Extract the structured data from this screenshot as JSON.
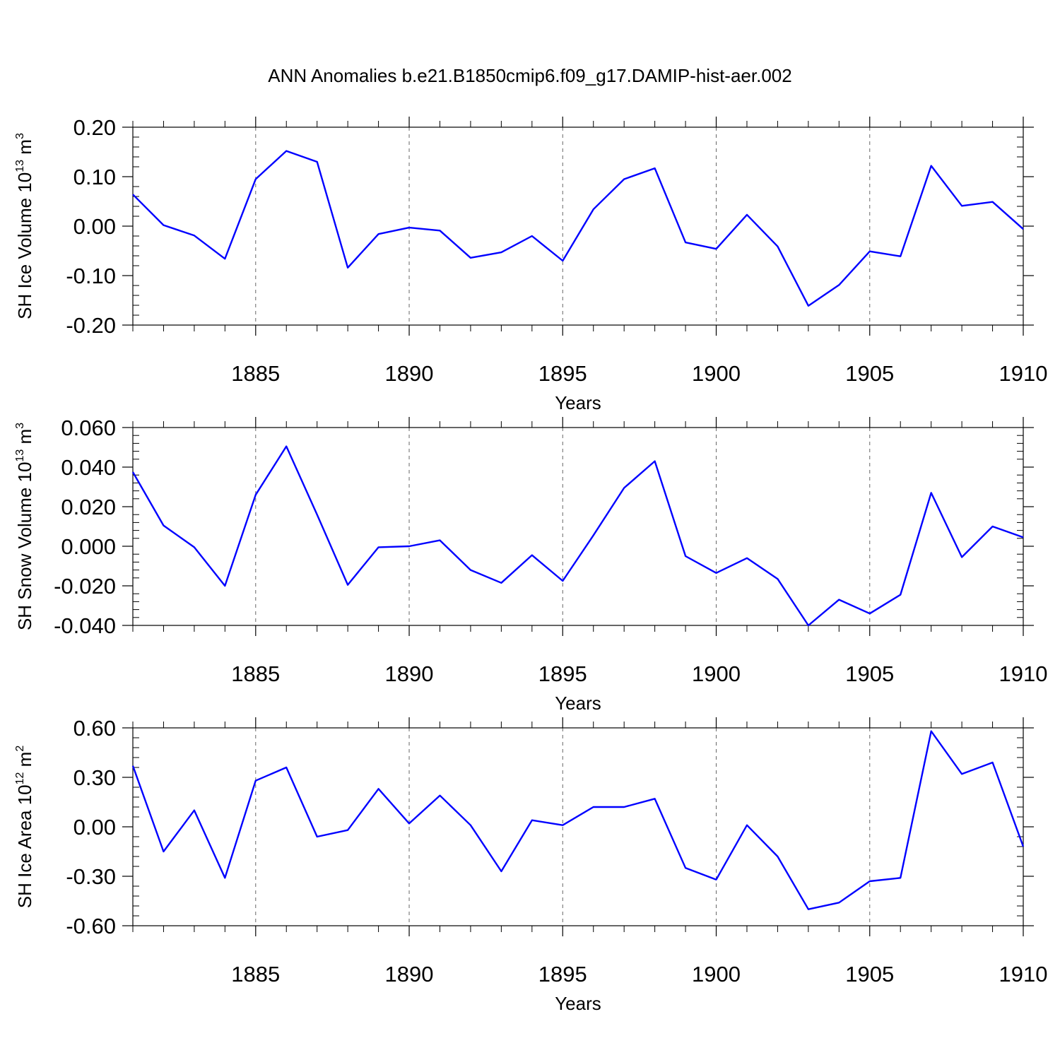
{
  "title": "ANN Anomalies b.e21.B1850cmip6.f09_g17.DAMIP-hist-aer.002",
  "colors": {
    "series": "#0000ff",
    "frame": "#000000",
    "grid": "#666666"
  },
  "chart_data": [
    {
      "type": "line",
      "title": "ANN Anomalies b.e21.B1850cmip6.f09_g17.DAMIP-hist-aer.002",
      "ylabel": "SH Ice Volume",
      "ylabel_unit_base": "10",
      "ylabel_unit_exp": "13",
      "ylabel_unit_name": "m",
      "ylabel_unit_pow": "3",
      "xlabel": "Years",
      "xlim": [
        1881,
        1910
      ],
      "ylim": [
        -0.2,
        0.2
      ],
      "yticks": [
        0.2,
        0.1,
        0.0,
        -0.1,
        -0.2
      ],
      "ytick_labels": [
        "0.20",
        "0.10",
        "0.00",
        "-0.10",
        "-0.20"
      ],
      "xticks": [
        1885,
        1890,
        1895,
        1900,
        1905,
        1910
      ],
      "xtick_labels": [
        "1885",
        "1890",
        "1895",
        "1900",
        "1905",
        "1910"
      ],
      "grid": "dashed vertical lines at labeled years",
      "x": [
        1881,
        1882,
        1883,
        1884,
        1885,
        1886,
        1887,
        1888,
        1889,
        1890,
        1891,
        1892,
        1893,
        1894,
        1895,
        1896,
        1897,
        1898,
        1899,
        1900,
        1901,
        1902,
        1903,
        1904,
        1905,
        1906,
        1907,
        1908,
        1909,
        1910
      ],
      "series": [
        {
          "values": [
            0.064,
            0.002,
            -0.019,
            -0.066,
            0.095,
            0.152,
            0.13,
            -0.084,
            -0.016,
            -0.003,
            -0.009,
            -0.064,
            -0.053,
            -0.02,
            -0.07,
            0.034,
            0.095,
            0.117,
            -0.033,
            -0.046,
            0.023,
            -0.041,
            -0.161,
            -0.119,
            -0.051,
            -0.061,
            0.122,
            0.041,
            0.049,
            -0.006
          ]
        }
      ]
    },
    {
      "type": "line",
      "ylabel": "SH Snow Volume",
      "ylabel_unit_base": "10",
      "ylabel_unit_exp": "13",
      "ylabel_unit_name": "m",
      "ylabel_unit_pow": "3",
      "xlabel": "Years",
      "xlim": [
        1881,
        1910
      ],
      "ylim": [
        -0.04,
        0.06
      ],
      "yticks": [
        0.06,
        0.04,
        0.02,
        0.0,
        -0.02,
        -0.04
      ],
      "ytick_labels": [
        "0.060",
        "0.040",
        "0.020",
        "0.000",
        "-0.020",
        "-0.040"
      ],
      "xticks": [
        1885,
        1890,
        1895,
        1900,
        1905,
        1910
      ],
      "xtick_labels": [
        "1885",
        "1890",
        "1895",
        "1900",
        "1905",
        "1910"
      ],
      "grid": "dashed vertical lines at labeled years",
      "x": [
        1881,
        1882,
        1883,
        1884,
        1885,
        1886,
        1887,
        1888,
        1889,
        1890,
        1891,
        1892,
        1893,
        1894,
        1895,
        1896,
        1897,
        1898,
        1899,
        1900,
        1901,
        1902,
        1903,
        1904,
        1905,
        1906,
        1907,
        1908,
        1909,
        1910
      ],
      "series": [
        {
          "values": [
            0.0375,
            0.0105,
            -0.0005,
            -0.02,
            0.026,
            0.0505,
            0.016,
            -0.0195,
            -0.0005,
            0.0,
            0.003,
            -0.012,
            -0.0185,
            -0.0045,
            -0.0175,
            0.0055,
            0.0295,
            0.043,
            -0.005,
            -0.0135,
            -0.006,
            -0.0165,
            -0.04,
            -0.027,
            -0.034,
            -0.0245,
            0.027,
            -0.0055,
            0.01,
            0.0045
          ]
        }
      ]
    },
    {
      "type": "line",
      "ylabel": "SH Ice Area",
      "ylabel_unit_base": "10",
      "ylabel_unit_exp": "12",
      "ylabel_unit_name": "m",
      "ylabel_unit_pow": "2",
      "xlabel": "Years",
      "xlim": [
        1881,
        1910
      ],
      "ylim": [
        -0.6,
        0.6
      ],
      "yticks": [
        0.6,
        0.3,
        0.0,
        -0.3,
        -0.6
      ],
      "ytick_labels": [
        "0.60",
        "0.30",
        "0.00",
        "-0.30",
        "-0.60"
      ],
      "xticks": [
        1885,
        1890,
        1895,
        1900,
        1905,
        1910
      ],
      "xtick_labels": [
        "1885",
        "1890",
        "1895",
        "1900",
        "1905",
        "1910"
      ],
      "grid": "dashed vertical lines at labeled years",
      "x": [
        1881,
        1882,
        1883,
        1884,
        1885,
        1886,
        1887,
        1888,
        1889,
        1890,
        1891,
        1892,
        1893,
        1894,
        1895,
        1896,
        1897,
        1898,
        1899,
        1900,
        1901,
        1902,
        1903,
        1904,
        1905,
        1906,
        1907,
        1908,
        1909,
        1910
      ],
      "series": [
        {
          "values": [
            0.37,
            -0.15,
            0.1,
            -0.31,
            0.28,
            0.36,
            -0.06,
            -0.02,
            0.23,
            0.02,
            0.19,
            0.01,
            -0.27,
            0.04,
            0.01,
            0.12,
            0.12,
            0.17,
            -0.25,
            -0.32,
            0.01,
            -0.18,
            -0.5,
            -0.46,
            -0.33,
            -0.31,
            0.58,
            0.32,
            0.39,
            -0.12
          ]
        }
      ]
    }
  ]
}
